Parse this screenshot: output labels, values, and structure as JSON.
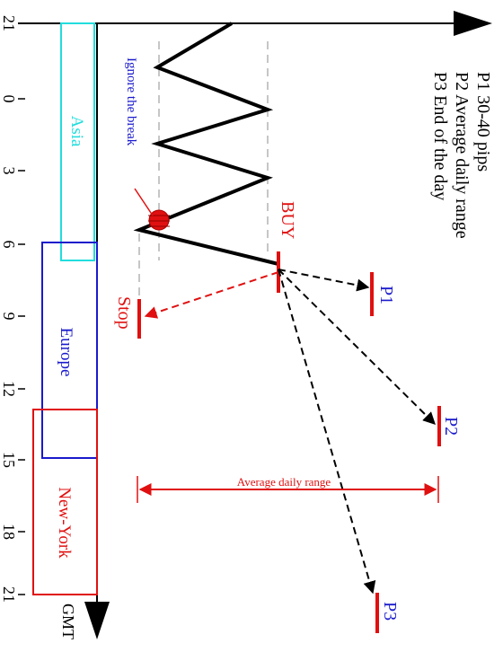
{
  "timeline": {
    "unit_label": "GMT",
    "ticks": [
      {
        "label": "21"
      },
      {
        "label": "0"
      },
      {
        "label": "3"
      },
      {
        "label": "6"
      },
      {
        "label": "9"
      },
      {
        "label": "12"
      },
      {
        "label": "15"
      },
      {
        "label": "18"
      },
      {
        "label": "21"
      }
    ]
  },
  "sessions": [
    {
      "label": "Asia",
      "color": "#22dddd"
    },
    {
      "label": "Europe",
      "color": "#1a1acc"
    },
    {
      "label": "New-York",
      "color": "#e01010"
    }
  ],
  "annotations": {
    "ignore_break": "Ignore the break",
    "buy": "BUY",
    "stop": "Stop",
    "average_daily_range": "Average daily range"
  },
  "targets": [
    {
      "label": "P1"
    },
    {
      "label": "P2"
    },
    {
      "label": "P3"
    }
  ],
  "legend": [
    {
      "label": "P1  30-40 pips"
    },
    {
      "label": "P2  Average daily range"
    },
    {
      "label": "P3  End of the day"
    }
  ],
  "colors": {
    "price": "#000000",
    "buy": "#e01010",
    "target": "#1a1acc",
    "range_guides": "#b4b4b4"
  }
}
